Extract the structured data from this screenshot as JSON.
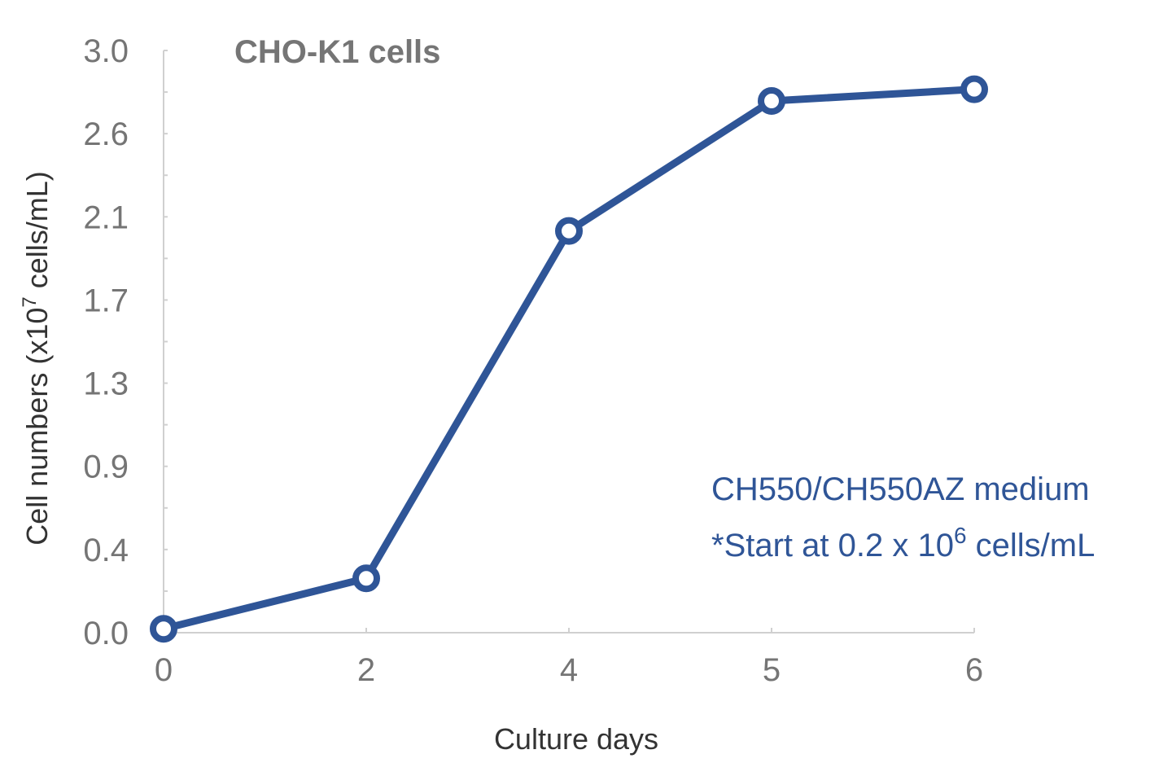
{
  "chart_data": {
    "type": "line",
    "title": "CHO-K1 cells",
    "xlabel": "Culture days",
    "ylabel_parts": [
      "Cell numbers (x10",
      "7",
      " cells/mL)"
    ],
    "categories": [
      "0",
      "2",
      "4",
      "5",
      "6"
    ],
    "series": [
      {
        "name": "CH550/CH550AZ medium",
        "values": [
          0.02,
          0.28,
          2.07,
          2.74,
          2.8
        ]
      }
    ],
    "ylim": [
      0,
      3.0
    ],
    "yticks": [
      "0.0",
      "0.4",
      "0.9",
      "1.3",
      "1.7",
      "2.1",
      "2.6",
      "3.0"
    ],
    "grid": false,
    "annotations": {
      "line1": "CH550/CH550AZ medium",
      "line2_prefix": "*Start at 0.2 x 10",
      "line2_sup": "6",
      "line2_suffix": " cells/mL"
    },
    "colors": {
      "series": "#2f5597",
      "axis": "#d0d0d0",
      "ticks": "#757575"
    }
  }
}
